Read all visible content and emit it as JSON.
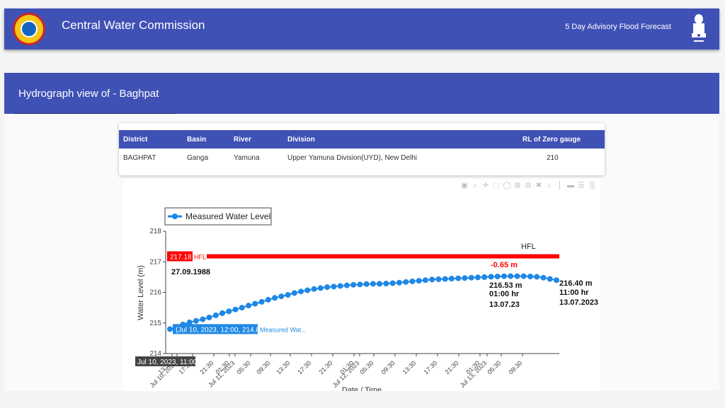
{
  "header": {
    "title": "Central Water Commission",
    "advisory_link": "5 Day Advisory Flood Forecast",
    "logo_icon": "cwc-logo-icon",
    "emblem_icon": "national-emblem-icon"
  },
  "section": {
    "title": "Hydrograph view of - Baghpat"
  },
  "table": {
    "headers": [
      "District",
      "Basin",
      "River",
      "Division",
      "RL of Zero gauge"
    ],
    "row": [
      "BAGHPAT",
      "Ganga",
      "Yamuna",
      "Upper Yamuna Division(UYD), New Delhi",
      "210"
    ]
  },
  "modebar": [
    "camera-icon",
    "zoom-icon",
    "pan-icon",
    "box-select-icon",
    "lasso-icon",
    "zoom-in-icon",
    "zoom-out-icon",
    "autoscale-icon",
    "reset-axes-icon",
    "spike-lines-icon",
    "hover-closest-icon",
    "hover-compare-icon",
    "plotly-logo-icon"
  ],
  "colors": {
    "primary": "#3f51b5",
    "series": "#1e88e5",
    "hfl": "#ff0000"
  },
  "chart_data": {
    "type": "line",
    "xlabel": "Date / Time",
    "ylabel": "Water Level (m)",
    "ylim": [
      214,
      218
    ],
    "yticks": [
      "214",
      "215",
      "216",
      "217",
      "218"
    ],
    "xticks": [
      "13:30",
      "Jul 10, 2023",
      "17:30",
      "21:30",
      "01:30",
      "Jul 11, 2023",
      "05:30",
      "09:30",
      "13:30",
      "17:30",
      "21:30",
      "01:30",
      "Jul 12, 2023",
      "05:30",
      "09:30",
      "13:30",
      "17:30",
      "21:30",
      "01:30",
      "Jul 13, 2023",
      "05:30",
      "09:30"
    ],
    "legend": {
      "label": "Measured Water Level",
      "placement": "top-left"
    },
    "series": [
      {
        "name": "Measured Water Level",
        "values": [
          214.8,
          214.85,
          214.95,
          215.02,
          215.07,
          215.12,
          215.18,
          215.25,
          215.32,
          215.38,
          215.44,
          215.5,
          215.57,
          215.63,
          215.69,
          215.76,
          215.82,
          215.87,
          215.92,
          215.98,
          216.03,
          216.07,
          216.11,
          216.14,
          216.17,
          216.19,
          216.21,
          216.23,
          216.25,
          216.26,
          216.27,
          216.28,
          216.28,
          216.29,
          216.3,
          216.32,
          216.34,
          216.36,
          216.38,
          216.4,
          216.42,
          216.43,
          216.44,
          216.45,
          216.46,
          216.47,
          216.48,
          216.49,
          216.5,
          216.51,
          216.52,
          216.53,
          216.53,
          216.53,
          216.53,
          216.52,
          216.51,
          216.48,
          216.44,
          216.4
        ]
      }
    ],
    "hfl": {
      "value": 217.18,
      "label": "HFL",
      "badge": "217.18",
      "tag": "HFL",
      "date": "27.09.1988"
    },
    "difference_label": "-0.65 m",
    "peak": {
      "level": "216.53 m",
      "time": "01:00 hr",
      "date": "13.07.23"
    },
    "latest": {
      "level": "216.40 m",
      "time": "11:00 hr",
      "date": "13.07.2023"
    },
    "hover": {
      "x_label": "Jul 10, 2023, 11:00",
      "point_label": "(Jul 10, 2023, 12:00, 214.8)",
      "series_tag": "Measured Wat..."
    }
  }
}
